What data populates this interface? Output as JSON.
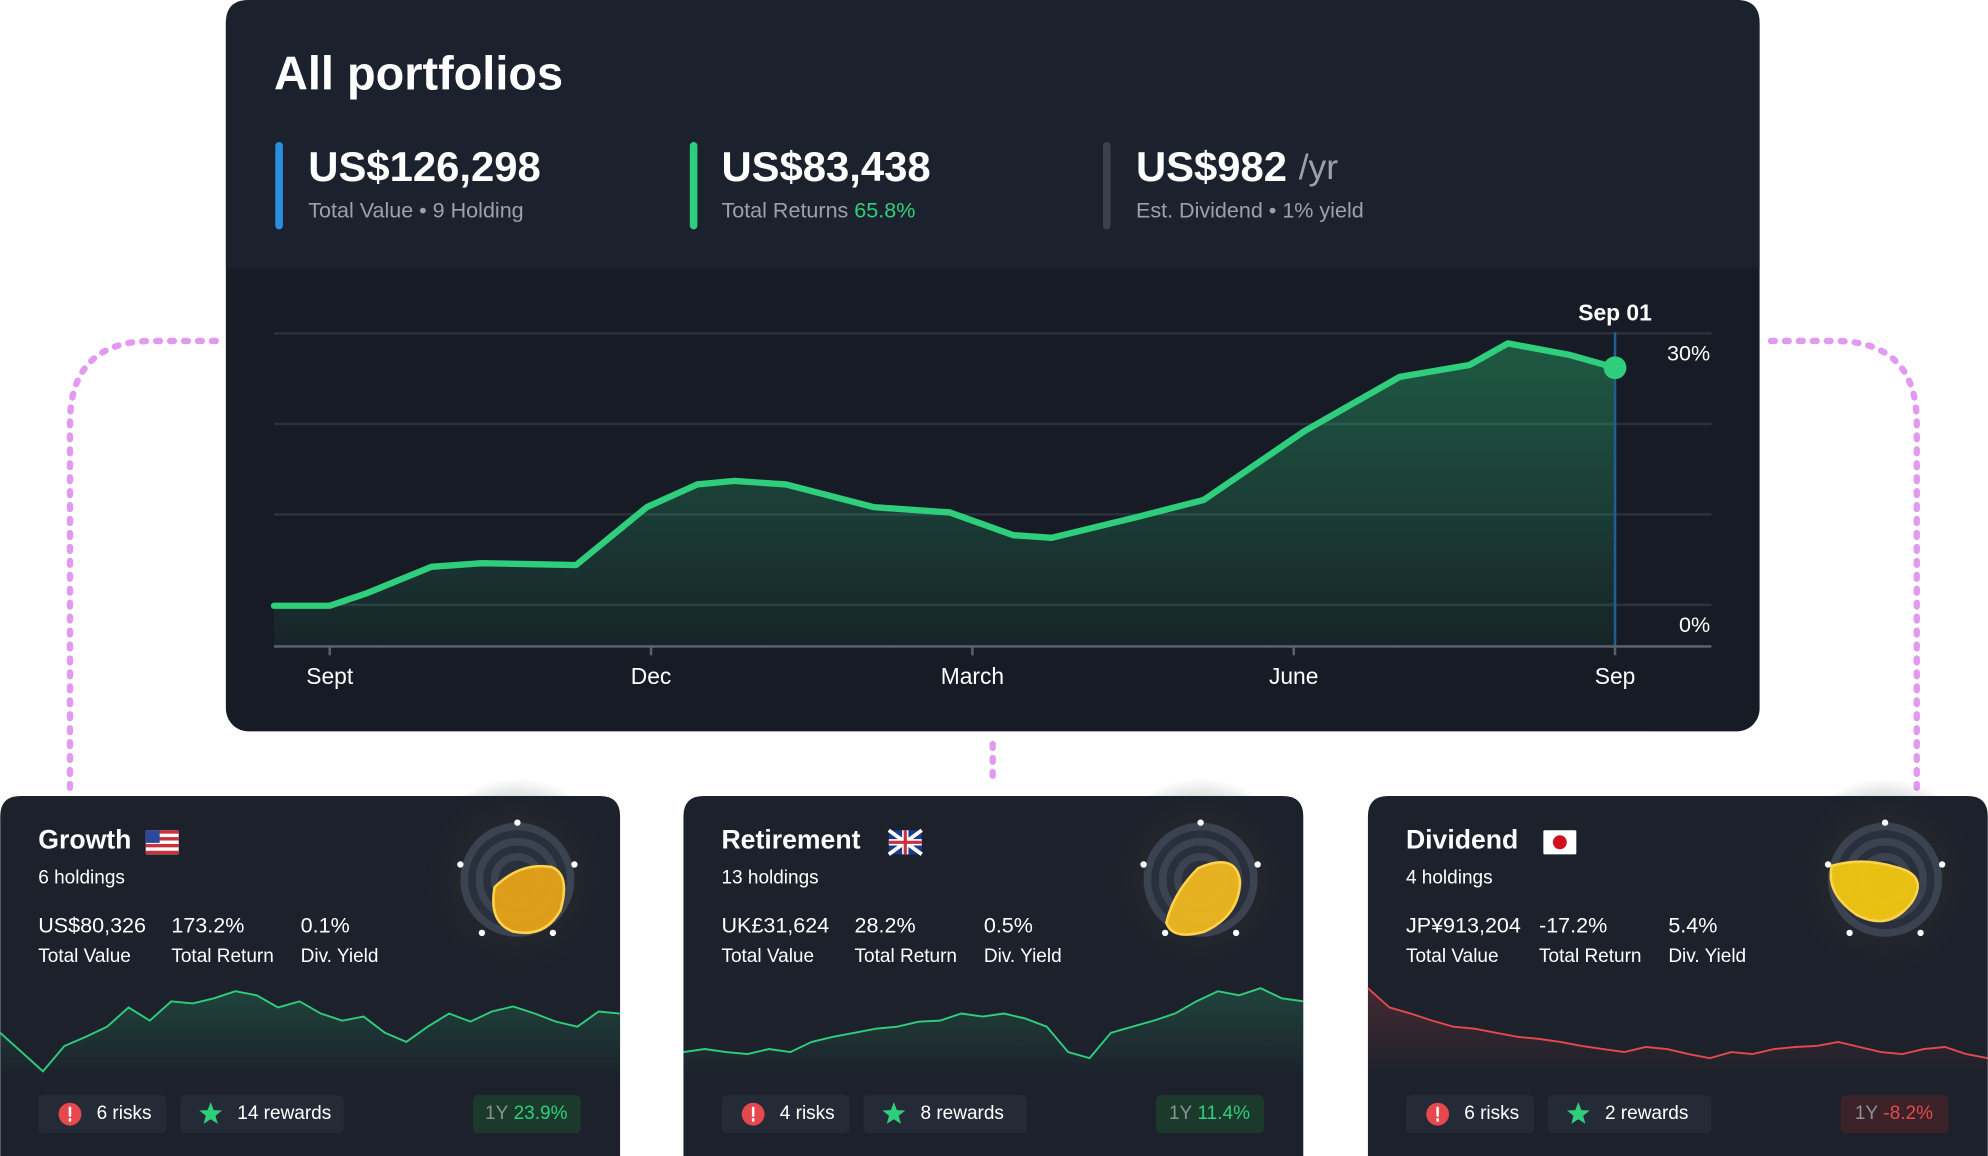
{
  "header": {
    "title": "All portfolios"
  },
  "stats": [
    {
      "value": "US$126,298",
      "label": "Total Value • 9 Holding"
    },
    {
      "value": "US$83,438",
      "label": "Total Returns",
      "extra": "65.8%"
    },
    {
      "value": "US$982",
      "unit": "/yr",
      "label": "Est. Dividend • 1% yield"
    }
  ],
  "chart_data": {
    "type": "area",
    "annotation": "Sep 01",
    "color": "#2fce7c",
    "x": [
      -0.52,
      0,
      0.35,
      0.95,
      1.42,
      2.3,
      2.96,
      3.43,
      3.78,
      4.26,
      5.08,
      5.79,
      6.38,
      6.74,
      7.57,
      8.16,
      9.1,
      9.99,
      10.64,
      11.0,
      11.58,
      12.0
    ],
    "values": [
      -0.1,
      -0.1,
      1.3,
      4.2,
      4.6,
      4.4,
      10.8,
      13.3,
      13.7,
      13.3,
      10.8,
      10.2,
      7.7,
      7.4,
      9.8,
      11.6,
      19.2,
      25.2,
      26.5,
      28.9,
      27.6,
      26.2
    ],
    "xlim": [
      -0.52,
      12.9
    ],
    "ylim": [
      -4.6,
      30
    ],
    "xticks": [
      {
        "value": 0,
        "label": "Sept"
      },
      {
        "value": 3,
        "label": "Dec"
      },
      {
        "value": 6,
        "label": "March"
      },
      {
        "value": 9,
        "label": "June"
      },
      {
        "value": 12,
        "label": "Sep"
      }
    ],
    "yticks": [
      {
        "value": 0,
        "label": "0%"
      },
      {
        "value": 10
      },
      {
        "value": 20
      },
      {
        "value": 30,
        "label": "30%"
      }
    ],
    "grid": true
  },
  "card_labels": [
    "Total Value",
    "Total Return",
    "Div. Yield"
  ],
  "portfolios": [
    {
      "name": "Growth",
      "holdings": "6 holdings",
      "total_value": "US$80,326",
      "total_return": "173.2%",
      "div_yield": "0.1%",
      "risks": "6 risks",
      "rewards": "14 rewards",
      "period": "1Y",
      "period_return": "23.9%",
      "positive": true,
      "color": "#2fce7c",
      "sparkline": [
        44,
        25,
        6,
        31,
        40,
        50,
        69,
        56,
        75,
        73,
        78,
        85,
        81,
        69,
        75,
        63,
        56,
        60,
        44,
        35,
        50,
        63,
        55,
        65,
        70,
        63,
        55,
        50,
        65,
        63
      ]
    },
    {
      "name": "Retirement",
      "holdings": "13 holdings",
      "total_value": "UK£31,624",
      "total_return": "28.2%",
      "div_yield": "0.5%",
      "risks": "4 risks",
      "rewards": "8 rewards",
      "period": "1Y",
      "period_return": "11.4%",
      "positive": true,
      "color": "#2fce7c",
      "sparkline": [
        25,
        28,
        25,
        23,
        28,
        25,
        35,
        40,
        44,
        48,
        50,
        55,
        56,
        63,
        60,
        63,
        58,
        50,
        25,
        19,
        44,
        50,
        56,
        63,
        75,
        85,
        81,
        88,
        78,
        75
      ]
    },
    {
      "name": "Dividend",
      "holdings": "4 holdings",
      "total_value": "JP¥913,204",
      "total_return": "-17.2%",
      "div_yield": "5.4%",
      "risks": "6 risks",
      "rewards": "2 rewards",
      "period": "1Y",
      "period_return": "-8.2%",
      "positive": false,
      "color": "#e5484d",
      "sparkline": [
        88,
        69,
        63,
        56,
        50,
        48,
        44,
        40,
        38,
        35,
        31,
        28,
        25,
        30,
        28,
        23,
        19,
        25,
        23,
        28,
        30,
        31,
        35,
        30,
        25,
        23,
        28,
        30,
        23,
        19
      ]
    }
  ]
}
